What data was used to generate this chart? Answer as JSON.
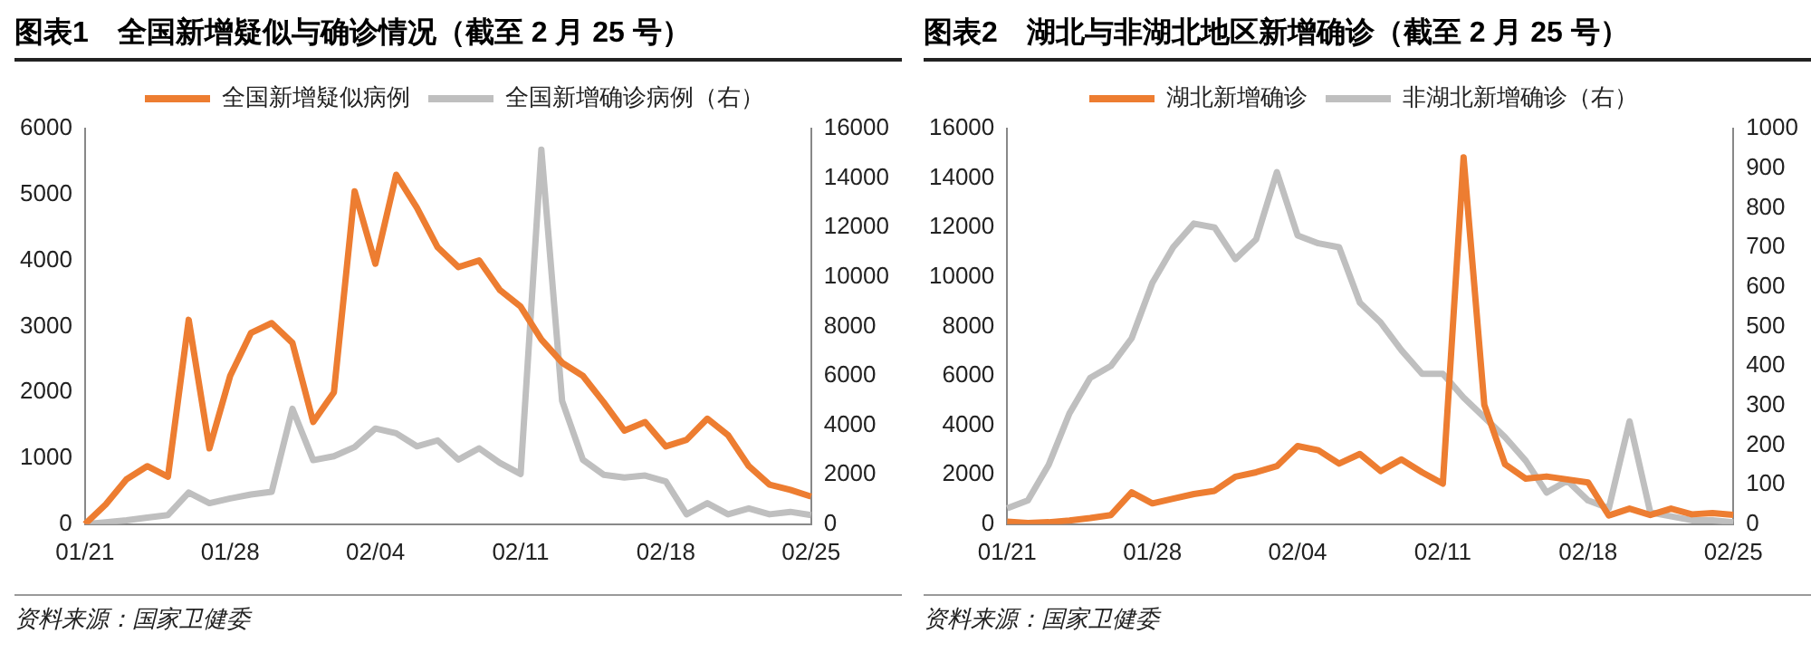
{
  "chart_data": [
    {
      "type": "line",
      "title": "图表1　全国新增疑似与确诊情况（截至 2 月 25 号）",
      "annotations": [
        "资料来源：国家卫健委"
      ],
      "legend": "top",
      "marker": "none",
      "categories": [
        "01/21",
        null,
        null,
        null,
        null,
        null,
        null,
        "01/28",
        null,
        null,
        null,
        null,
        null,
        null,
        "02/04",
        null,
        null,
        null,
        null,
        null,
        null,
        "02/11",
        null,
        null,
        null,
        null,
        null,
        null,
        "02/18",
        null,
        null,
        null,
        null,
        null,
        null,
        "02/25"
      ],
      "ylim": [
        0,
        6000
      ],
      "yticks": [
        0,
        1000,
        2000,
        3000,
        4000,
        5000,
        6000
      ],
      "y2lim": [
        0,
        16000
      ],
      "y2ticks": [
        0,
        2000,
        4000,
        6000,
        8000,
        10000,
        12000,
        14000,
        16000
      ],
      "series": [
        {
          "name": "全国新增疑似病例",
          "color": "#ed7d31",
          "values": [
            0,
            300,
            680,
            880,
            720,
            3100,
            1150,
            2250,
            2900,
            3050,
            2750,
            1550,
            2000,
            5050,
            3950,
            5300,
            4800,
            4200,
            3900,
            4000,
            3550,
            3300,
            2800,
            2450,
            2250,
            1850,
            1420,
            1550,
            1180,
            1280,
            1600,
            1350,
            880,
            600,
            520,
            420
          ]
        },
        {
          "name": "全国新增确诊病例（右）",
          "color": "#bfbfbf",
          "axis": "y2",
          "values": [
            0,
            80,
            160,
            270,
            370,
            1280,
            850,
            1040,
            1200,
            1310,
            4670,
            2590,
            2750,
            3120,
            3870,
            3680,
            3150,
            3390,
            2610,
            3070,
            2480,
            2030,
            15150,
            4990,
            2610,
            2000,
            1890,
            1970,
            1730,
            400,
            850,
            400,
            640,
            400,
            500,
            370
          ]
        }
      ]
    },
    {
      "type": "line",
      "title": "图表2　湖北与非湖北地区新增确诊（截至 2 月 25 号）",
      "annotations": [
        "资料来源：国家卫健委"
      ],
      "legend": "top",
      "marker": "none",
      "categories": [
        "01/21",
        null,
        null,
        null,
        null,
        null,
        null,
        "01/28",
        null,
        null,
        null,
        null,
        null,
        null,
        "02/04",
        null,
        null,
        null,
        null,
        null,
        null,
        "02/11",
        null,
        null,
        null,
        null,
        null,
        null,
        "02/18",
        null,
        null,
        null,
        null,
        null,
        null,
        "02/25"
      ],
      "ylim": [
        0,
        16000
      ],
      "yticks": [
        0,
        2000,
        4000,
        6000,
        8000,
        10000,
        12000,
        14000,
        16000
      ],
      "y2lim": [
        0,
        1000
      ],
      "y2ticks": [
        0,
        100,
        200,
        300,
        400,
        500,
        600,
        700,
        800,
        900,
        1000
      ],
      "series": [
        {
          "name": "湖北新增确诊",
          "color": "#ed7d31",
          "values": [
            100,
            50,
            80,
            150,
            250,
            370,
            1290,
            840,
            1030,
            1220,
            1350,
            1920,
            2100,
            2350,
            3160,
            2990,
            2450,
            2840,
            2150,
            2620,
            2100,
            1640,
            14840,
            4820,
            2420,
            1840,
            1930,
            1810,
            1690,
            350,
            630,
            370,
            630,
            400,
            450,
            380
          ]
        },
        {
          "name": "非湖北新增确诊（右）",
          "color": "#bfbfbf",
          "axis": "y2",
          "values": [
            40,
            60,
            150,
            280,
            370,
            400,
            470,
            610,
            700,
            760,
            750,
            670,
            720,
            890,
            730,
            710,
            700,
            560,
            510,
            440,
            380,
            380,
            320,
            270,
            220,
            160,
            80,
            110,
            60,
            40,
            260,
            30,
            20,
            10,
            10,
            5
          ]
        }
      ]
    }
  ]
}
